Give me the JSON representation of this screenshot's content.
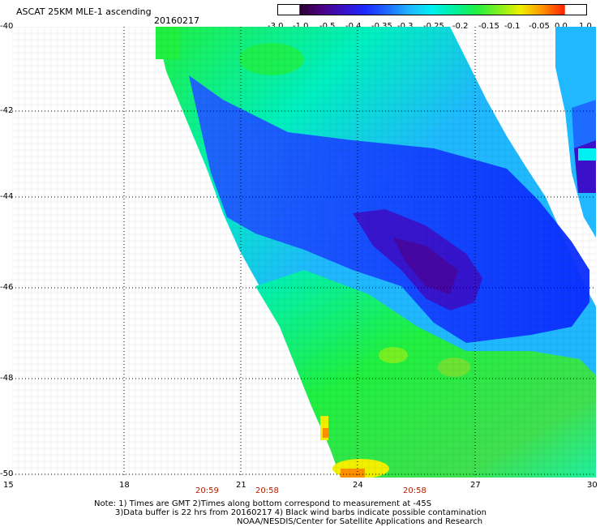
{
  "header": {
    "title": "ASCAT 25KM MLE-1 ascending",
    "date": "20160217"
  },
  "colorbar": {
    "labels": [
      "-3.0",
      "-1.0",
      "-0.5",
      "-0.4",
      "-0.35",
      "-0.3",
      "-0.25",
      "-0.2",
      "-0.15",
      "-0.1",
      "-0.05",
      "0.0",
      "1.0"
    ],
    "colors": [
      "#2a0030",
      "#4b0082",
      "#3a10c8",
      "#1a2cff",
      "#1e6bff",
      "#20b8ff",
      "#00f0f0",
      "#00f0a0",
      "#20f040",
      "#80f020",
      "#f0f000",
      "#ff9000",
      "#ff2000"
    ]
  },
  "map": {
    "lat_labels": [
      "-40",
      "-42",
      "-44",
      "-46",
      "-48",
      "-50"
    ],
    "lon_labels": [
      "15",
      "18",
      "21",
      "24",
      "27",
      "30"
    ],
    "time_labels": [
      "20:59",
      "20:58",
      "20:58"
    ]
  },
  "notes": {
    "line1": "Note: 1) Times are GMT 2)Times along bottom correspond to measurement at -45S",
    "line2": "3)Data buffer is 22 hrs from 20160217 4) Black wind barbs indicate possible contamination",
    "line3": "NOAA/NESDIS/Center for Satellite Applications and Research"
  }
}
